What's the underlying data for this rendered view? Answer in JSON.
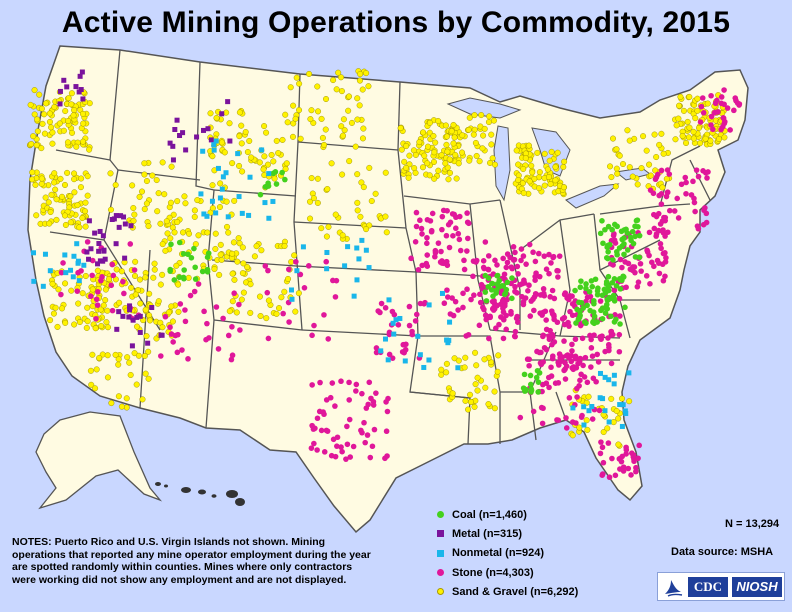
{
  "title": "Active Mining Operations by Commodity, 2015",
  "legend": [
    {
      "label": "Coal (n=1,460)",
      "color": "#44d11d",
      "shape": "circle"
    },
    {
      "label": "Metal (n=315)",
      "color": "#7a139c",
      "shape": "square"
    },
    {
      "label": "Nonmetal (n=924)",
      "color": "#19b6ea",
      "shape": "square"
    },
    {
      "label": "Stone (n=4,303)",
      "color": "#e0179a",
      "shape": "circle"
    },
    {
      "label": "Sand & Gravel (n=6,292)",
      "color": "#fff200",
      "shape": "circle"
    }
  ],
  "total": "N = 13,294",
  "source": "Data source: MSHA",
  "notes": "NOTES: Puerto Rico and U.S. Virgin Islands not shown. Mining operations that reported any mine operator employment during the year are spotted randomly within counties. Mines where only contractors were working did not show any employment and are not displayed.",
  "logo": {
    "cdc": "CDC",
    "niosh": "NIOSH"
  },
  "colors": {
    "background": "#c9d7ff",
    "land": "#fffbe2",
    "border": "#555555"
  }
}
